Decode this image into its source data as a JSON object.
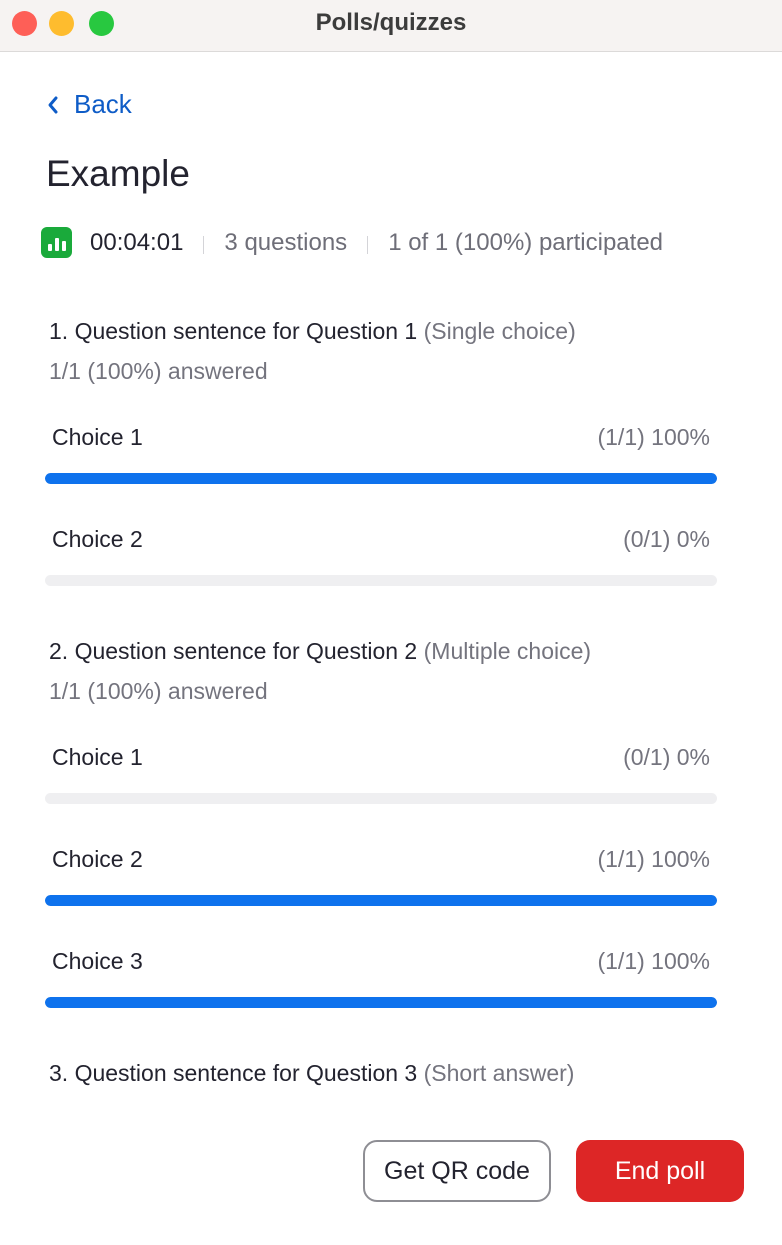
{
  "window": {
    "title": "Polls/quizzes",
    "controls": {
      "close": "#fe5f57",
      "minimize": "#febc2e",
      "zoom": "#28c840"
    }
  },
  "back_label": "Back",
  "poll_title": "Example",
  "meta": {
    "icon": "bar-chart-icon",
    "elapsed": "00:04:01",
    "questions": "3 questions",
    "participation": "1 of 1 (100%) participated"
  },
  "questions": [
    {
      "title": "1. Question sentence for Question 1",
      "type": "(Single choice)",
      "answered": "1/1 (100%) answered",
      "choices": [
        {
          "label": "Choice 1",
          "result": "(1/1) 100%",
          "percent": 100
        },
        {
          "label": "Choice 2",
          "result": "(0/1) 0%",
          "percent": 0
        }
      ]
    },
    {
      "title": "2.  Question sentence for Question 2",
      "type": "(Multiple choice)",
      "answered": "1/1 (100%) answered",
      "choices": [
        {
          "label": "Choice 1",
          "result": "(0/1) 0%",
          "percent": 0
        },
        {
          "label": "Choice 2",
          "result": "(1/1) 100%",
          "percent": 100
        },
        {
          "label": "Choice 3",
          "result": "(1/1) 100%",
          "percent": 100
        }
      ]
    },
    {
      "title": "3.  Question sentence for Question 3",
      "type": "(Short answer)",
      "choices": []
    }
  ],
  "buttons": {
    "qr": "Get QR code",
    "end": "End poll"
  },
  "colors": {
    "accent": "#0e72ed",
    "end_button": "#dd2626",
    "icon_green": "#1aaa3b",
    "link": "#0e5cc7"
  }
}
